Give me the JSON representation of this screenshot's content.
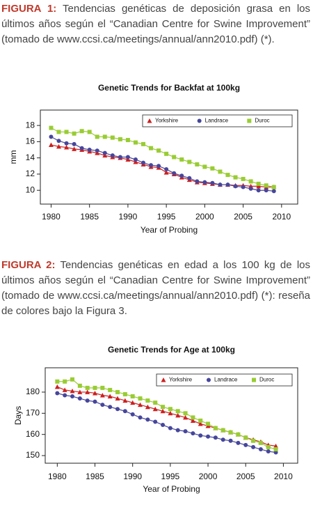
{
  "captions": [
    {
      "label": "FIGURA 1:",
      "text": "Tendencias genéticas de deposición grasa en los últimos años según el “Canadian Centre for Swine Improvement” (tomado de www.ccsi.ca/meetings/annual/ann2010.pdf) (*)."
    },
    {
      "label": "FIGURA 2:",
      "text": "Tendencias genéticas en edad a los 100 kg de los últimos años según el “Canadian Centre for Swine Improvement” (tomado de www.ccsi.ca/meetings/annual/ann2010.pdf) (*): reseña de colores bajo la Figura 3."
    }
  ],
  "chart_data": [
    {
      "type": "line",
      "title": "Genetic Trends for Backfat at 100kg",
      "xlabel": "Year of Probing",
      "ylabel": "mm",
      "x": [
        1980,
        1981,
        1982,
        1983,
        1984,
        1985,
        1986,
        1987,
        1988,
        1989,
        1990,
        1991,
        1992,
        1993,
        1994,
        1995,
        1996,
        1997,
        1998,
        1999,
        2000,
        2001,
        2002,
        2003,
        2004,
        2005,
        2006,
        2007,
        2008,
        2009
      ],
      "xlim": [
        1978.6,
        2012.1
      ],
      "xticks": [
        1980,
        1985,
        1990,
        1995,
        2000,
        2005,
        2010
      ],
      "ylim": [
        8.3,
        19.9
      ],
      "yticks": [
        10,
        12,
        14,
        16,
        18
      ],
      "legend": "upper right",
      "series": [
        {
          "name": "Yorkshire",
          "color": "#cc2020",
          "marker": "triangle",
          "values": [
            15.6,
            15.4,
            15.3,
            15.1,
            15.0,
            14.8,
            14.6,
            14.3,
            14.1,
            14.0,
            13.8,
            13.5,
            13.2,
            12.9,
            12.8,
            12.2,
            12.0,
            11.6,
            11.3,
            11.0,
            10.9,
            10.8,
            10.7,
            10.7,
            10.6,
            10.6,
            10.5,
            10.5,
            10.4,
            10.4
          ]
        },
        {
          "name": "Landrace",
          "color": "#46469c",
          "marker": "circle",
          "values": [
            16.6,
            16.1,
            15.8,
            15.7,
            15.2,
            15.0,
            14.9,
            14.6,
            14.3,
            14.1,
            14.1,
            13.8,
            13.4,
            13.1,
            13.0,
            12.6,
            12.1,
            11.8,
            11.5,
            11.1,
            11.0,
            10.9,
            10.7,
            10.7,
            10.5,
            10.4,
            10.2,
            10.0,
            10.0,
            9.9
          ]
        },
        {
          "name": "Duroc",
          "color": "#99cc33",
          "marker": "square",
          "values": [
            17.7,
            17.2,
            17.2,
            17.0,
            17.3,
            17.2,
            16.6,
            16.6,
            16.5,
            16.3,
            16.2,
            15.9,
            15.7,
            15.2,
            14.9,
            14.5,
            14.1,
            13.8,
            13.5,
            13.2,
            12.9,
            12.7,
            12.3,
            11.9,
            11.6,
            11.4,
            11.1,
            10.8,
            10.6,
            10.4
          ]
        }
      ]
    },
    {
      "type": "line",
      "title": "Genetic Trends for Age at 100kg",
      "xlabel": "Year of Probing",
      "ylabel": "Days",
      "x": [
        1980,
        1981,
        1982,
        1983,
        1984,
        1985,
        1986,
        1987,
        1988,
        1989,
        1990,
        1991,
        1992,
        1993,
        1994,
        1995,
        1996,
        1997,
        1998,
        1999,
        2000,
        2001,
        2002,
        2003,
        2004,
        2005,
        2006,
        2007,
        2008,
        2009
      ],
      "xlim": [
        1978.4,
        2011.9
      ],
      "xticks": [
        1980,
        1985,
        1990,
        1995,
        2000,
        2005,
        2010
      ],
      "ylim": [
        146.4,
        191.5
      ],
      "yticks": [
        150,
        160,
        170,
        180
      ],
      "legend": "upper right",
      "series": [
        {
          "name": "Yorkshire",
          "color": "#cc2020",
          "marker": "triangle",
          "values": [
            182.5,
            181,
            180.5,
            180,
            180,
            179.5,
            178.5,
            178,
            177,
            176,
            175,
            174,
            173,
            172,
            171,
            170,
            169,
            168,
            166.5,
            165,
            164,
            163,
            162,
            161,
            160,
            158.5,
            157.5,
            156.5,
            155,
            154.5
          ]
        },
        {
          "name": "Landrace",
          "color": "#46469c",
          "marker": "circle",
          "values": [
            179.5,
            178.5,
            178,
            177,
            176,
            175.5,
            174,
            173,
            172,
            171,
            169.5,
            168,
            167,
            166,
            164.5,
            163,
            162,
            161.5,
            160.5,
            159.5,
            159,
            158.5,
            157.5,
            157,
            156,
            155,
            154,
            153,
            152,
            151.5
          ]
        },
        {
          "name": "Duroc",
          "color": "#99cc33",
          "marker": "square",
          "values": [
            185,
            185,
            186,
            183,
            182,
            182,
            182,
            181,
            180,
            179,
            178,
            177,
            176,
            175,
            173,
            172,
            171,
            170,
            168,
            166.5,
            165,
            163,
            162,
            161,
            160,
            158.5,
            157,
            156,
            154,
            153
          ]
        }
      ]
    }
  ]
}
